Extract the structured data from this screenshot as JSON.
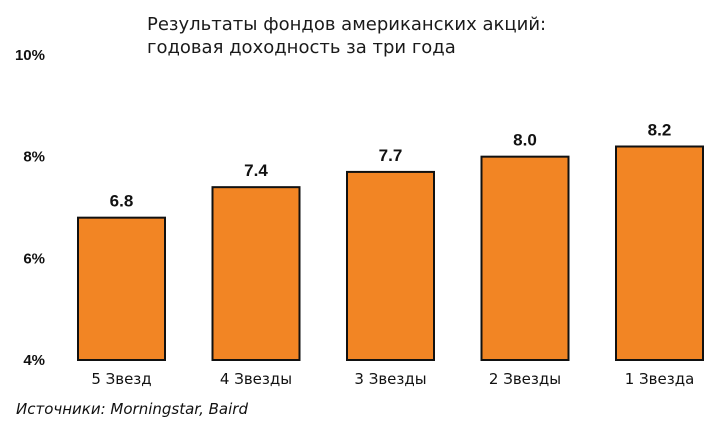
{
  "chart_data": {
    "type": "bar",
    "title_lines": [
      "Результаты фондов американских акций:",
      "годовая доходность за три года"
    ],
    "categories": [
      "5 Звезд",
      "4 Звезды",
      "3 Звезды",
      "2 Звезды",
      "1 Звезда"
    ],
    "values": [
      6.8,
      7.4,
      7.7,
      8.0,
      8.2
    ],
    "value_labels": [
      "6.8",
      "7.4",
      "7.7",
      "8.0",
      "8.2"
    ],
    "yticks": [
      4,
      6,
      8,
      10
    ],
    "ytick_labels": [
      "4%",
      "6%",
      "8%",
      "10%"
    ],
    "ylim": [
      4,
      10
    ],
    "xlabel": "",
    "ylabel": "",
    "grid": false,
    "bar_color": "#f28524",
    "bar_edge_color": "#111111"
  },
  "source": "Источники: Morningstar, Baird"
}
